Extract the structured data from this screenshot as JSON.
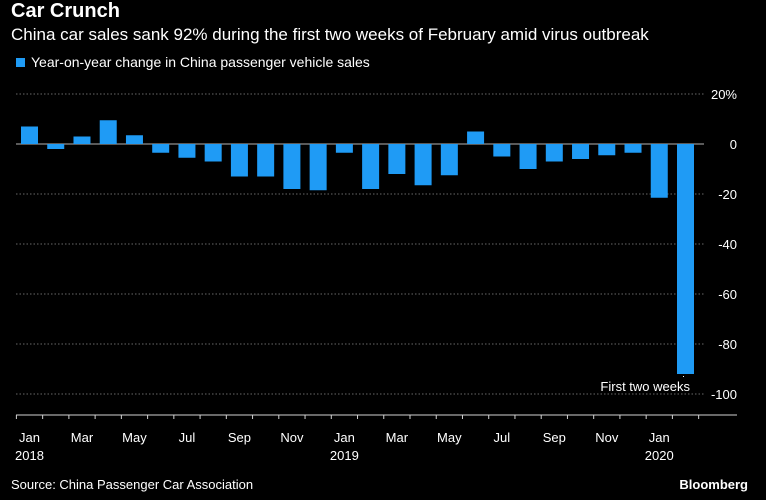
{
  "header": {
    "title": "Car Crunch",
    "subtitle": "China car sales sank 92% during the first two weeks of February amid virus outbreak"
  },
  "footer": {
    "source": "Source: China Passenger Car Association",
    "brand": "Bloomberg"
  },
  "colors": {
    "bar": "#1f9bf5",
    "background": "#000000",
    "text": "#ffffff",
    "grid": "#8c8c8c"
  },
  "chart_data": {
    "type": "bar",
    "title": "Car Crunch",
    "subtitle": "China car sales sank 92% during the first two weeks of February amid virus outbreak",
    "legend": [
      "Year-on-year change in China passenger vehicle sales"
    ],
    "legend_position": "top-left",
    "ylim": [
      -100,
      20
    ],
    "yticks": [
      20,
      0,
      -20,
      -40,
      -60,
      -80,
      -100
    ],
    "ytick_labels": [
      "20%",
      "0",
      "-20",
      "-40",
      "-60",
      "-80",
      "-100"
    ],
    "grid": true,
    "categories": [
      "Jan 2018",
      "Feb 2018",
      "Mar 2018",
      "Apr 2018",
      "May 2018",
      "Jun 2018",
      "Jul 2018",
      "Aug 2018",
      "Sep 2018",
      "Oct 2018",
      "Nov 2018",
      "Dec 2018",
      "Jan 2019",
      "Feb 2019",
      "Mar 2019",
      "Apr 2019",
      "May 2019",
      "Jun 2019",
      "Jul 2019",
      "Aug 2019",
      "Sep 2019",
      "Oct 2019",
      "Nov 2019",
      "Dec 2019",
      "Jan 2020",
      "First two weeks Feb 2020"
    ],
    "values": [
      7,
      -2,
      3,
      9.5,
      3.5,
      -3.5,
      -5.5,
      -7,
      -13,
      -13,
      -18,
      -18.5,
      -3.5,
      -18,
      -12,
      -16.5,
      -12.5,
      5,
      -5,
      -10,
      -7,
      -6,
      -4.5,
      -3.5,
      -21.5,
      -92
    ],
    "x_tick_labels": [
      {
        "label": "Jan",
        "year": "2018",
        "index": 0
      },
      {
        "label": "Mar",
        "year": "",
        "index": 2
      },
      {
        "label": "May",
        "year": "",
        "index": 4
      },
      {
        "label": "Jul",
        "year": "",
        "index": 6
      },
      {
        "label": "Sep",
        "year": "",
        "index": 8
      },
      {
        "label": "Nov",
        "year": "",
        "index": 10
      },
      {
        "label": "Jan",
        "year": "2019",
        "index": 12
      },
      {
        "label": "Mar",
        "year": "",
        "index": 14
      },
      {
        "label": "May",
        "year": "",
        "index": 16
      },
      {
        "label": "Jul",
        "year": "",
        "index": 18
      },
      {
        "label": "Sep",
        "year": "",
        "index": 20
      },
      {
        "label": "Nov",
        "year": "",
        "index": 22
      },
      {
        "label": "Jan",
        "year": "2020",
        "index": 24
      }
    ],
    "annotation": {
      "text": "First two weeks",
      "index": 25
    }
  }
}
